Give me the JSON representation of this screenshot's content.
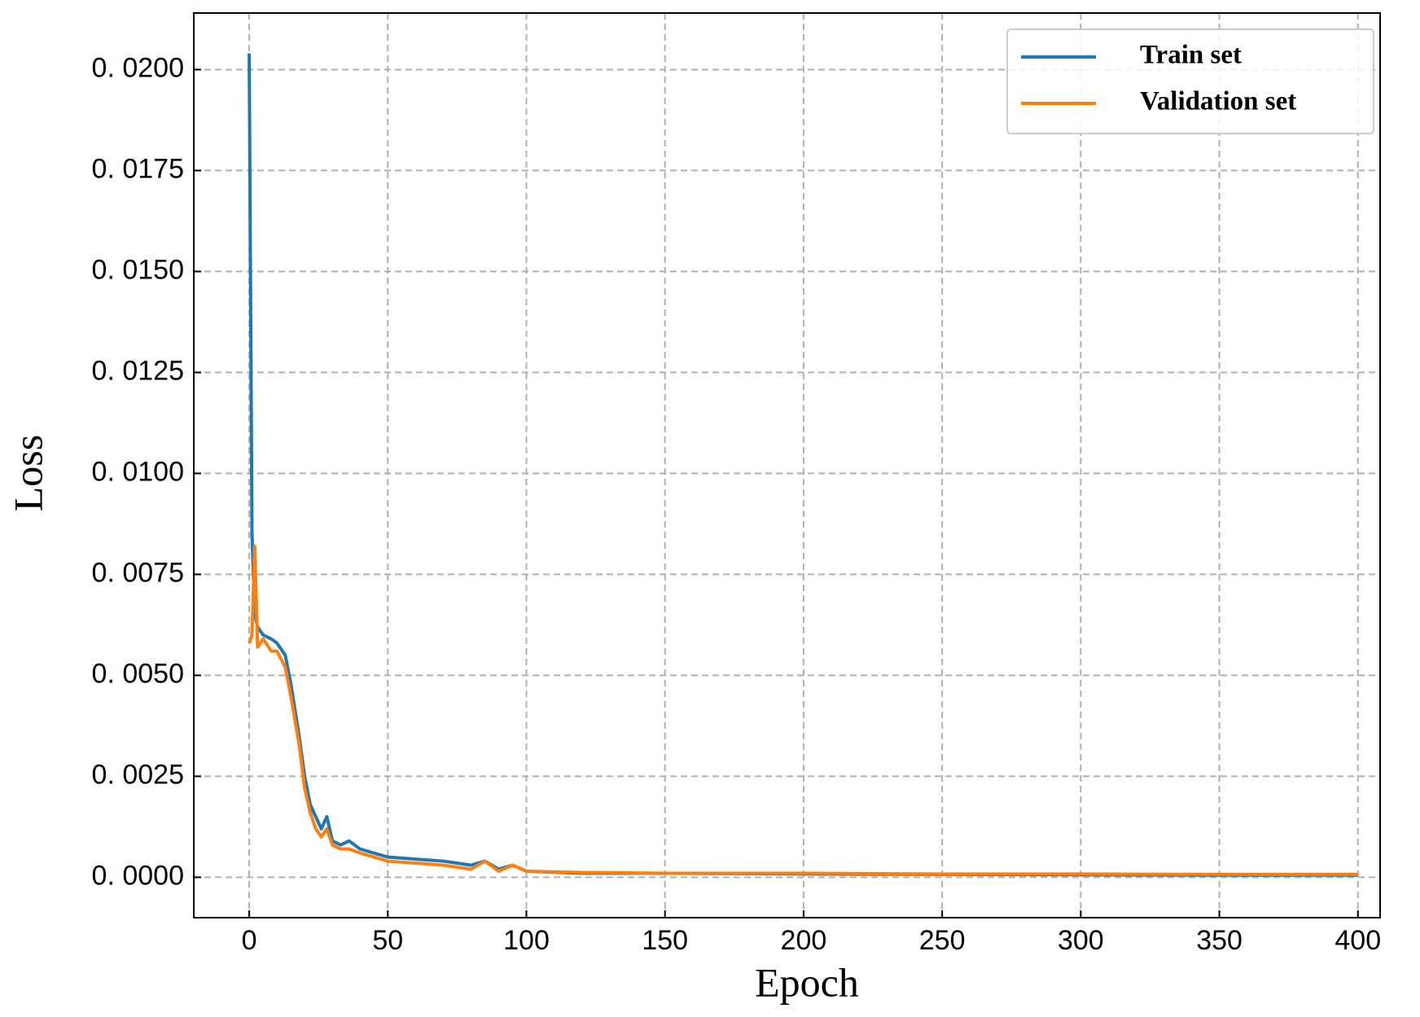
{
  "chart_data": {
    "type": "line",
    "x_label": "Epoch",
    "y_label": "Loss",
    "x": [
      0,
      1,
      2,
      3,
      5,
      8,
      10,
      13,
      15,
      18,
      20,
      22,
      24,
      26,
      28,
      30,
      33,
      36,
      40,
      45,
      50,
      60,
      70,
      80,
      85,
      90,
      95,
      100,
      120,
      150,
      200,
      250,
      300,
      350,
      400
    ],
    "series": [
      {
        "name": "Train set",
        "color": "#1f77b4",
        "values": [
          0.0204,
          0.0085,
          0.0065,
          0.0062,
          0.006,
          0.0059,
          0.0058,
          0.0055,
          0.0048,
          0.0035,
          0.0025,
          0.0018,
          0.0015,
          0.0012,
          0.0015,
          0.0009,
          0.0008,
          0.0009,
          0.0007,
          0.0006,
          0.0005,
          0.00045,
          0.0004,
          0.0003,
          0.0004,
          0.0002,
          0.0003,
          0.00015,
          0.0001,
          0.0001,
          8e-05,
          7e-05,
          6e-05,
          5e-05,
          5e-05
        ]
      },
      {
        "name": "Validation set",
        "color": "#ff7f0e",
        "values": [
          0.0058,
          0.006,
          0.0082,
          0.0057,
          0.0059,
          0.0056,
          0.0056,
          0.0052,
          0.0045,
          0.0033,
          0.0022,
          0.0016,
          0.0012,
          0.001,
          0.0012,
          0.0008,
          0.0007,
          0.0007,
          0.0006,
          0.0005,
          0.0004,
          0.00035,
          0.0003,
          0.0002,
          0.0004,
          0.00015,
          0.0003,
          0.00015,
          0.00012,
          0.0001,
          0.0001,
          8e-05,
          8e-05,
          7e-05,
          7e-05
        ]
      }
    ],
    "xlim": [
      -20,
      408
    ],
    "ylim": [
      -0.001,
      0.0214
    ],
    "xticks": [
      0,
      50,
      100,
      150,
      200,
      250,
      300,
      350,
      400
    ],
    "yticks": [
      {
        "value": 0,
        "label": "0. 0000"
      },
      {
        "value": 0.0025,
        "label": "0. 0025"
      },
      {
        "value": 0.005,
        "label": "0. 0050"
      },
      {
        "value": 0.0075,
        "label": "0. 0075"
      },
      {
        "value": 0.01,
        "label": "0. 0100"
      },
      {
        "value": 0.0125,
        "label": "0. 0125"
      },
      {
        "value": 0.015,
        "label": "0. 0150"
      },
      {
        "value": 0.0175,
        "label": "0. 0175"
      },
      {
        "value": 0.02,
        "label": "0. 0200"
      }
    ],
    "grid": true,
    "legend": "upper right"
  }
}
